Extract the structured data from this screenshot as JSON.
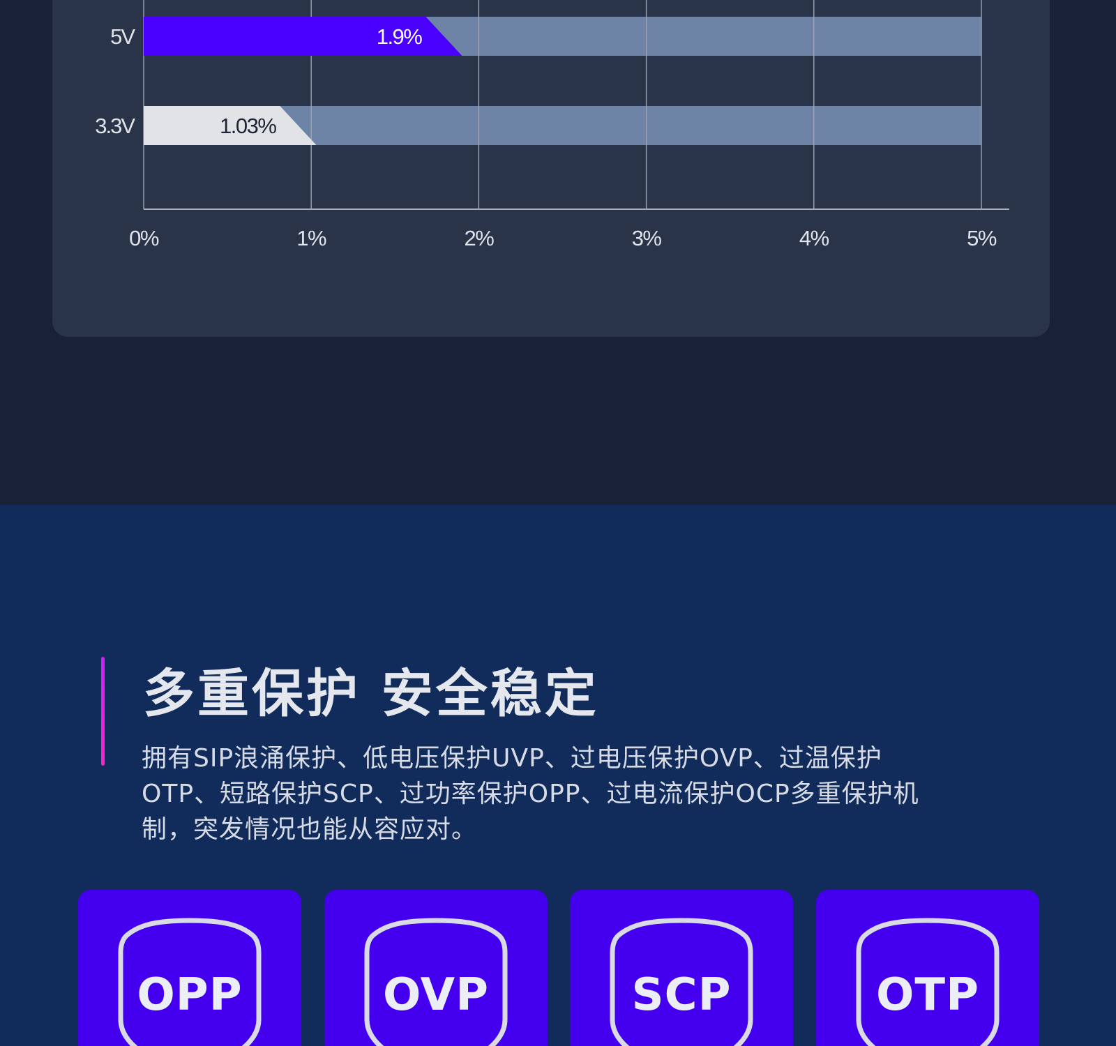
{
  "chart_data": {
    "type": "bar",
    "orientation": "horizontal",
    "categories": [
      "5V",
      "3.3V"
    ],
    "values": [
      1.9,
      1.03
    ],
    "value_labels": [
      "1.9%",
      "1.03%"
    ],
    "bar_colors": [
      "#4a00ff",
      "#e2e3e6"
    ],
    "label_colors": [
      "#ffffff",
      "#1d2433"
    ],
    "track_color": "#6e84a6",
    "xlim": [
      0,
      5
    ],
    "x_ticks": [
      0,
      1,
      2,
      3,
      4,
      5
    ],
    "x_tick_labels": [
      "0%",
      "1%",
      "2%",
      "3%",
      "4%",
      "5%"
    ],
    "grid": true,
    "title": "",
    "xlabel": "",
    "ylabel": ""
  },
  "protection": {
    "title": "多重保护 安全稳定",
    "description": "拥有SIP浪涌保护、低电压保护UVP、过电压保护OVP、过温保护OTP、短路保护SCP、过功率保护OPP、过电流保护OCP多重保护机制，突发情况也能从容应对。",
    "accent_color": "#e01ef2",
    "card_color": "#4400ee",
    "cards": [
      {
        "label": "OPP",
        "icon": "shield-icon"
      },
      {
        "label": "OVP",
        "icon": "shield-icon"
      },
      {
        "label": "SCP",
        "icon": "shield-icon"
      },
      {
        "label": "OTP",
        "icon": "shield-icon"
      }
    ]
  }
}
